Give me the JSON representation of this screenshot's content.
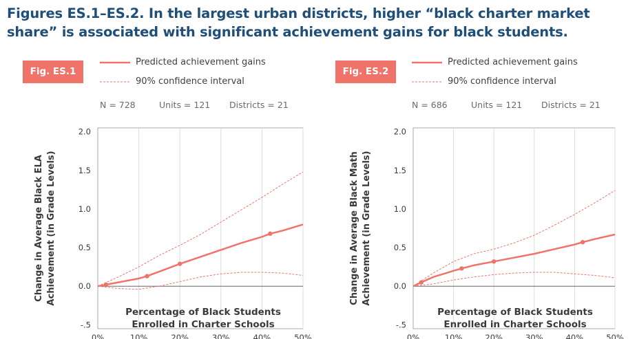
{
  "title": "Figures ES.1–ES.2. In the largest urban districts, higher “black charter market share” is associated with significant achievement gains for black students.",
  "colors": {
    "accent": "#f0736a",
    "title": "#1f4e79"
  },
  "legend": {
    "predicted_label": "Predicted achievement gains",
    "ci_label": "90% confidence interval"
  },
  "chart_data": [
    {
      "type": "line",
      "fig_label": "Fig. ES.1",
      "stats": {
        "n": "N = 728",
        "units": "Units = 121",
        "districts": "Districts = 21"
      },
      "ylabel": [
        "Change in Average Black ELA",
        "Achievement (in Grade Levels)"
      ],
      "xlabel": [
        "Percentage of Black Students",
        "Enrolled in Charter Schools"
      ],
      "xlim": [
        0,
        50
      ],
      "ylim": [
        -0.55,
        2.05
      ],
      "xticks": [
        0,
        10,
        20,
        30,
        40,
        50
      ],
      "xtick_labels": [
        "0%",
        "10%",
        "20%",
        "30%",
        "40%",
        "50%"
      ],
      "yticks": [
        2.0,
        1.5,
        1.0,
        0.5,
        0.0,
        -0.5
      ],
      "ytick_labels": [
        "2.0",
        "1.5",
        "1.0",
        "0.5",
        "0.0",
        "-.5"
      ],
      "series": [
        {
          "name": "Predicted achievement gains",
          "style": "solid",
          "x": [
            0,
            2,
            5,
            10,
            12,
            15,
            20,
            25,
            30,
            35,
            40,
            42,
            45,
            50
          ],
          "y": [
            0,
            0.02,
            0.05,
            0.1,
            0.13,
            0.19,
            0.29,
            0.38,
            0.47,
            0.56,
            0.64,
            0.68,
            0.72,
            0.8
          ]
        },
        {
          "name": "90% confidence interval",
          "style": "dashed",
          "x": [
            0,
            5,
            10,
            15,
            20,
            25,
            30,
            35,
            40,
            45,
            50
          ],
          "y": [
            0,
            0.12,
            0.25,
            0.4,
            0.53,
            0.67,
            0.83,
            0.99,
            1.15,
            1.32,
            1.48
          ]
        },
        {
          "name": "90% confidence interval",
          "style": "dashed",
          "x": [
            0,
            5,
            10,
            15,
            20,
            25,
            30,
            35,
            40,
            45,
            50
          ],
          "y": [
            0,
            -0.03,
            -0.04,
            0.0,
            0.06,
            0.12,
            0.16,
            0.18,
            0.18,
            0.17,
            0.14
          ]
        }
      ],
      "points": {
        "x": [
          2,
          12,
          20,
          42
        ],
        "y": [
          0.02,
          0.13,
          0.29,
          0.68
        ]
      }
    },
    {
      "type": "line",
      "fig_label": "Fig. ES.2",
      "stats": {
        "n": "N = 686",
        "units": "Units = 121",
        "districts": "Districts = 21"
      },
      "ylabel": [
        "Change in Average Black Math",
        "Achievement (in Grade Levels)"
      ],
      "xlabel": [
        "Percentage of Black Students",
        "Enrolled in Charter Schools"
      ],
      "xlim": [
        0,
        50
      ],
      "ylim": [
        -0.55,
        2.05
      ],
      "xticks": [
        0,
        10,
        20,
        30,
        40,
        50
      ],
      "xtick_labels": [
        "0%",
        "10%",
        "20%",
        "30%",
        "40%",
        "50%"
      ],
      "yticks": [
        2.0,
        1.5,
        1.0,
        0.5,
        0.0,
        -0.5
      ],
      "ytick_labels": [
        "2.0",
        "1.5",
        "1.0",
        "0.5",
        "0.0",
        "-.5"
      ],
      "series": [
        {
          "name": "Predicted achievement gains",
          "style": "solid",
          "x": [
            0,
            2,
            5,
            10,
            12,
            15,
            20,
            25,
            30,
            35,
            40,
            42,
            45,
            50
          ],
          "y": [
            0,
            0.05,
            0.12,
            0.2,
            0.23,
            0.27,
            0.32,
            0.37,
            0.42,
            0.48,
            0.54,
            0.57,
            0.61,
            0.67
          ]
        },
        {
          "name": "90% confidence interval",
          "style": "dashed",
          "x": [
            0,
            5,
            10,
            15,
            20,
            25,
            30,
            35,
            40,
            45,
            50
          ],
          "y": [
            0,
            0.17,
            0.32,
            0.42,
            0.48,
            0.56,
            0.66,
            0.79,
            0.93,
            1.08,
            1.24
          ]
        },
        {
          "name": "90% confidence interval",
          "style": "dashed",
          "x": [
            0,
            5,
            10,
            15,
            20,
            25,
            30,
            35,
            40,
            45,
            50
          ],
          "y": [
            0,
            0.03,
            0.08,
            0.12,
            0.15,
            0.17,
            0.18,
            0.18,
            0.16,
            0.14,
            0.11
          ]
        }
      ],
      "points": {
        "x": [
          2,
          12,
          20,
          42
        ],
        "y": [
          0.05,
          0.23,
          0.32,
          0.57
        ]
      }
    }
  ]
}
